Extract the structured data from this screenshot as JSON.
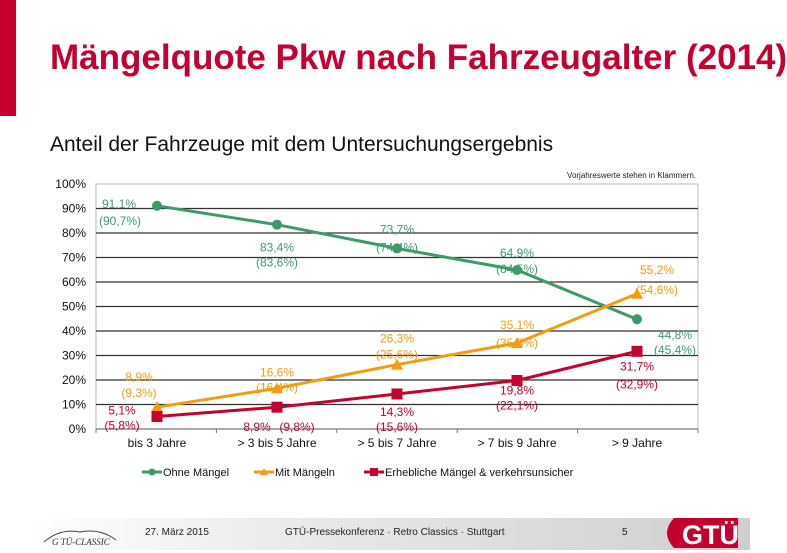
{
  "header": {
    "title": "Mängelquote Pkw nach Fahrzeugalter (2014)",
    "subtitle": "Anteil der Fahrzeuge mit dem Untersuchungsergebnis"
  },
  "chart_data": {
    "type": "line",
    "note": "Vorjahreswerte stehen in Klammern.",
    "categories": [
      "bis 3 Jahre",
      "> 3 bis 5 Jahre",
      "> 5 bis 7 Jahre",
      "> 7 bis 9 Jahre",
      "> 9 Jahre"
    ],
    "ylim": [
      0,
      100
    ],
    "yticks": [
      "0%",
      "10%",
      "20%",
      "30%",
      "40%",
      "50%",
      "60%",
      "70%",
      "80%",
      "90%",
      "100%"
    ],
    "grid": true,
    "legend": "bottom",
    "series": [
      {
        "name": "Ohne Mängel",
        "color": "#3f9a6a",
        "marker": "circle",
        "values": [
          91.1,
          83.4,
          73.7,
          64.9,
          44.8
        ],
        "previous": [
          90.7,
          83.6,
          74.4,
          64.5,
          45.4
        ],
        "labels": [
          "91,1%",
          "83,4%",
          "73,7%",
          "64,9%",
          "44,8%"
        ],
        "prev_labels": [
          "(90,7%)",
          "(83,6%)",
          "(74,4%)",
          "(64,5%)",
          "(45,4%)"
        ]
      },
      {
        "name": "Mit Mängeln",
        "color": "#f39c12",
        "marker": "triangle",
        "values": [
          8.9,
          16.6,
          26.3,
          35.1,
          55.2
        ],
        "previous": [
          9.3,
          16.4,
          25.6,
          35.5,
          54.6
        ],
        "labels": [
          "8,9%",
          "16,6%",
          "26,3%",
          "35,1%",
          "55,2%"
        ],
        "prev_labels": [
          "(9,3%)",
          "(16,4%)",
          "(25,6%)",
          "(35,5%)",
          "(54,6%)"
        ]
      },
      {
        "name": "Erhebliche Mängel & verkehrsunsicher",
        "color": "#c4002f",
        "marker": "square",
        "values": [
          5.1,
          8.9,
          14.3,
          19.8,
          31.7
        ],
        "previous": [
          5.8,
          9.8,
          15.6,
          22.1,
          32.9
        ],
        "labels": [
          "5,1%",
          "8,9%",
          "14,3%",
          "19,8%",
          "31,7%"
        ],
        "prev_labels": [
          "(5,8%)",
          "(9,8%)",
          "(15,6%)",
          "(22,1%)",
          "(32,9%)"
        ]
      }
    ]
  },
  "footer": {
    "logo_left": "GTÜ-CLASSIC",
    "date": "27. März 2015",
    "event": "GTÜ-Pressekonferenz · Retro Classics · Stuttgart",
    "page": "5",
    "logo_right": "GTÜ"
  }
}
